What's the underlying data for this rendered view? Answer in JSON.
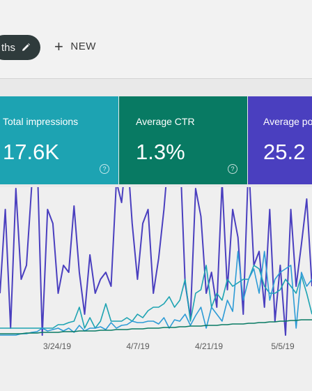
{
  "toolbar": {
    "range_chip_label": "ths",
    "new_label": "NEW"
  },
  "metrics": [
    {
      "label": "Total impressions",
      "value": "17.6K",
      "color": "#1da3b2"
    },
    {
      "label": "Average CTR",
      "value": "1.3%",
      "color": "#087a63"
    },
    {
      "label": "Average pos",
      "value": "25.2",
      "color": "#4a3fbf"
    }
  ],
  "help_glyph": "?",
  "chart_data": {
    "type": "line",
    "x_tick_labels": [
      "3/24/19",
      "4/7/19",
      "4/21/19",
      "5/5/19"
    ],
    "series": [
      {
        "color": "#4a3fbf",
        "values": [
          420,
          300,
          470,
          270,
          400,
          380,
          265,
          220,
          480,
          300,
          320,
          420,
          380,
          390,
          295,
          390,
          450,
          365,
          420,
          400,
          390,
          410,
          260,
          290,
          210,
          320,
          400,
          320,
          300,
          420,
          370,
          300,
          210,
          225,
          210,
          405,
          455,
          270,
          310,
          420,
          390,
          440,
          260,
          415,
          300,
          340,
          450,
          230,
          380,
          360,
          440,
          300,
          460,
          380,
          480,
          300,
          410,
          350,
          285,
          410
        ]
      },
      {
        "color": "#1da3b2",
        "values": [
          470,
          470,
          470,
          470,
          470,
          470,
          470,
          470,
          470,
          470,
          470,
          465,
          465,
          462,
          460,
          440,
          470,
          455,
          470,
          460,
          435,
          460,
          460,
          460,
          455,
          460,
          450,
          455,
          445,
          440,
          440,
          435,
          425,
          440,
          430,
          400,
          460,
          420,
          415,
          380,
          440,
          420,
          430,
          400,
          410,
          405,
          400,
          400,
          380,
          385,
          410,
          420,
          420,
          415,
          400,
          410,
          420,
          395,
          420,
          450
        ]
      },
      {
        "color": "#2d9bd6",
        "values": [
          480,
          480,
          480,
          480,
          478,
          478,
          476,
          475,
          470,
          474,
          472,
          470,
          474,
          470,
          476,
          466,
          474,
          470,
          470,
          468,
          472,
          462,
          470,
          466,
          465,
          460,
          462,
          462,
          460,
          460,
          464,
          455,
          470,
          458,
          460,
          450,
          466,
          452,
          440,
          470,
          440,
          450,
          460,
          430,
          446,
          360,
          430,
          400,
          385,
          420,
          360,
          430,
          400,
          390,
          385,
          380,
          470,
          390,
          410,
          400
        ]
      },
      {
        "color": "#087a63",
        "values": [
          478,
          478,
          478,
          478,
          478,
          477,
          477,
          477,
          476,
          476,
          476,
          476,
          475,
          475,
          475,
          474,
          474,
          474,
          474,
          473,
          473,
          473,
          472,
          472,
          472,
          471,
          471,
          471,
          470,
          470,
          470,
          469,
          469,
          469,
          468,
          468,
          467,
          467,
          467,
          466,
          466,
          466,
          465,
          465,
          464,
          464,
          464,
          463,
          463,
          462,
          462,
          461,
          461,
          460,
          460,
          459,
          459,
          458,
          458,
          458
        ]
      }
    ]
  }
}
